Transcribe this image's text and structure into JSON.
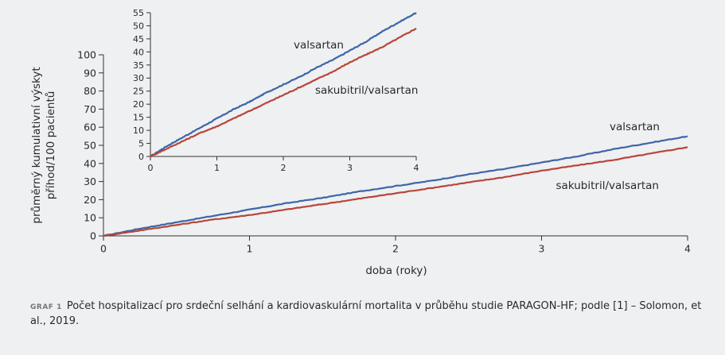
{
  "chart_data": [
    {
      "type": "line",
      "ylabel": [
        "průměrný kumulativní výskyt",
        "příhod/100 pacientů"
      ],
      "xlabel": "doba (roky)",
      "xlim": [
        0,
        4
      ],
      "ylim": [
        0,
        100
      ],
      "xticks": [
        "0",
        "1",
        "2",
        "3",
        "4"
      ],
      "yticks": [
        "0",
        "10",
        "20",
        "30",
        "40",
        "50",
        "60",
        "70",
        "80",
        "90",
        "100"
      ],
      "series": [
        {
          "name": "valsartan",
          "color": "#3d65a8",
          "x": [
            0,
            0.25,
            0.5,
            0.75,
            1.0,
            1.25,
            1.5,
            1.75,
            2.0,
            2.25,
            2.5,
            2.75,
            3.0,
            3.25,
            3.5,
            3.75,
            4.0
          ],
          "y": [
            0,
            4,
            7.5,
            11,
            14.5,
            18,
            21,
            24.5,
            27.5,
            30.5,
            34,
            37,
            40.5,
            44,
            48,
            51.5,
            55
          ]
        },
        {
          "name": "sakubitril/valsartan",
          "color": "#b8453a",
          "x": [
            0,
            0.25,
            0.5,
            0.75,
            1.0,
            1.25,
            1.5,
            1.75,
            2.0,
            2.25,
            2.5,
            2.75,
            3.0,
            3.25,
            3.5,
            3.75,
            4.0
          ],
          "y": [
            0,
            3,
            6,
            9,
            11.5,
            14.5,
            17.5,
            20.5,
            23.5,
            26.5,
            29.5,
            32.5,
            36,
            39,
            42,
            45.5,
            49
          ]
        }
      ]
    },
    {
      "type": "line",
      "role": "inset",
      "xlim": [
        0,
        4
      ],
      "ylim": [
        0,
        55
      ],
      "xticks": [
        "0",
        "1",
        "2",
        "3",
        "4"
      ],
      "yticks": [
        "0",
        "5",
        "10",
        "15",
        "20",
        "25",
        "30",
        "35",
        "40",
        "45",
        "50",
        "55"
      ],
      "series": [
        {
          "name": "valsartan",
          "color": "#3d65a8"
        },
        {
          "name": "sakubitril/valsartan",
          "color": "#b8453a"
        }
      ]
    }
  ],
  "caption": {
    "label": "GRAF 1",
    "text": "Počet hospitalizací pro srdeční selhání a kardiovaskulární mortalita v průběhu studie PARAGON-HF; podle [1] – Solomon, et al., 2019."
  }
}
